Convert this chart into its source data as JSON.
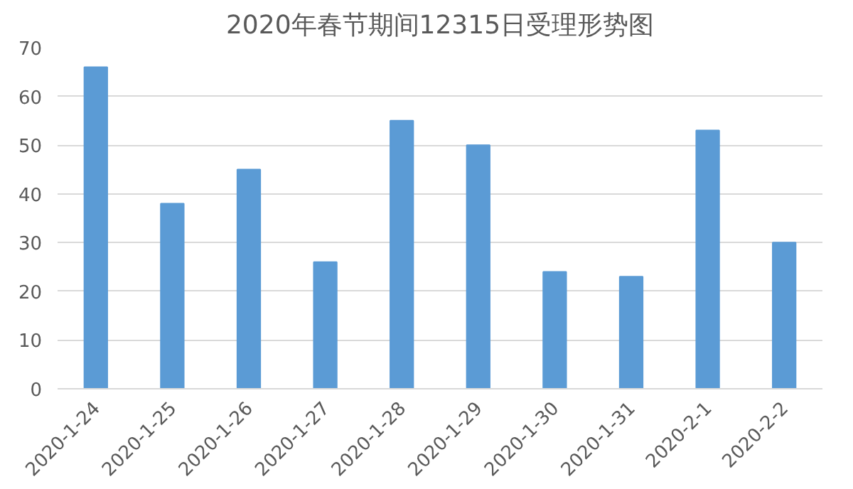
{
  "chart_data": {
    "type": "bar",
    "title": "2020年春节期间12315日受理形势图",
    "categories": [
      "2020-1-24",
      "2020-1-25",
      "2020-1-26",
      "2020-1-27",
      "2020-1-28",
      "2020-1-29",
      "2020-1-30",
      "2020-1-31",
      "2020-2-1",
      "2020-2-2"
    ],
    "values": [
      66,
      38,
      45,
      26,
      55,
      50,
      24,
      23,
      53,
      30
    ],
    "color": "#5b9bd5",
    "ylim": [
      0,
      70
    ],
    "yticks": [
      0,
      10,
      20,
      30,
      40,
      50,
      60,
      70
    ],
    "grid": "y"
  }
}
